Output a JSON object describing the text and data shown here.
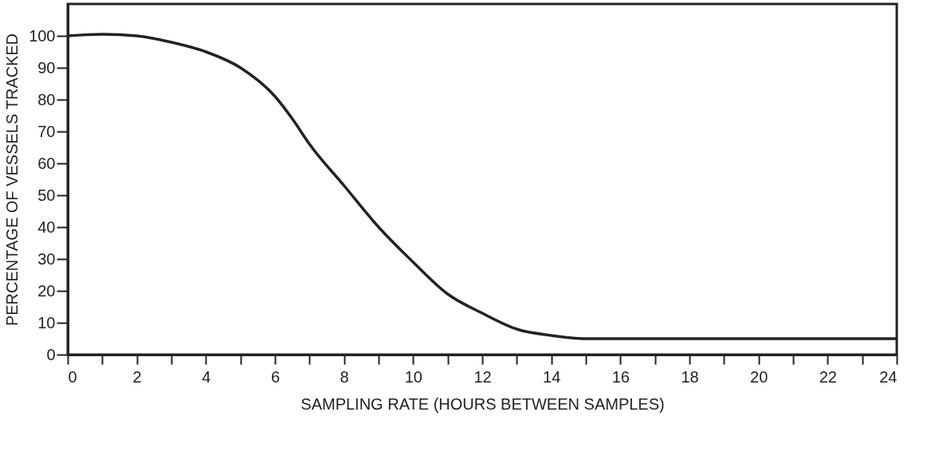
{
  "chart_data": {
    "type": "line",
    "xlabel": "SAMPLING RATE (HOURS BETWEEN SAMPLES)",
    "ylabel": "PERCENTAGE OF VESSELS TRACKED",
    "x": [
      0,
      1,
      2,
      3,
      4,
      5,
      6,
      6.5,
      7,
      8,
      9,
      10,
      11,
      12,
      13,
      14,
      15,
      16,
      18,
      20,
      22,
      24
    ],
    "series": [
      {
        "color": "#222222",
        "values": [
          100,
          100.5,
          100,
          98,
          95,
          90,
          81,
          74,
          66,
          53,
          40,
          29,
          19,
          13,
          8,
          6,
          5,
          5,
          5,
          5,
          5,
          5
        ]
      }
    ],
    "xlim": [
      0,
      24
    ],
    "xticks": [
      0,
      {
        "value": 1,
        "label": null
      },
      2,
      {
        "value": 3,
        "label": null
      },
      4,
      {
        "value": 5,
        "label": null
      },
      6,
      {
        "value": 7,
        "label": null
      },
      8,
      {
        "value": 9,
        "label": null
      },
      10,
      {
        "value": 11,
        "label": null
      },
      12,
      {
        "value": 13,
        "label": null
      },
      14,
      {
        "value": 15,
        "label": null
      },
      16,
      {
        "value": 17,
        "label": null
      },
      18,
      {
        "value": 19,
        "label": null
      },
      20,
      {
        "value": 21,
        "label": null
      },
      22,
      {
        "value": 23,
        "label": null
      },
      24
    ],
    "ylim": [
      0,
      110
    ],
    "yticks": [
      0,
      10,
      20,
      30,
      40,
      50,
      60,
      70,
      80,
      90,
      100
    ],
    "grid": false,
    "legend": false,
    "marker": "none",
    "line_style": "solid"
  }
}
